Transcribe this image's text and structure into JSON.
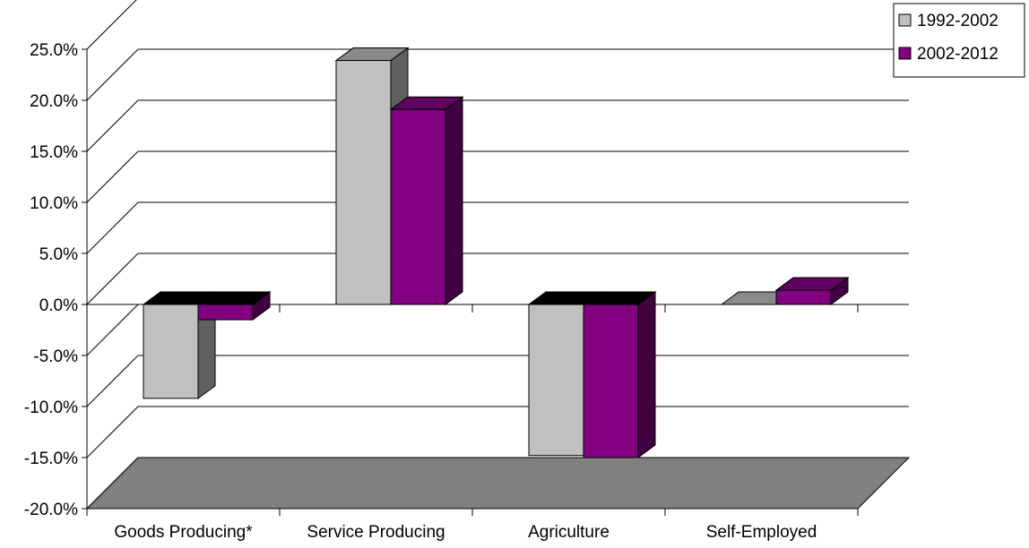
{
  "chart_data": {
    "type": "bar",
    "title": "",
    "xlabel": "",
    "ylabel": "",
    "categories": [
      "Goods Producing*",
      "Service Producing",
      "Agriculture",
      "Self-Employed"
    ],
    "series": [
      {
        "name": "1992-2002",
        "values": [
          -9.2,
          23.9,
          -14.8,
          0.0
        ]
      },
      {
        "name": "2002-2012",
        "values": [
          -1.5,
          19.1,
          -15.0,
          1.4
        ]
      }
    ],
    "ylim": [
      -20,
      25
    ],
    "yticks": [
      "25.0%",
      "20.0%",
      "15.0%",
      "10.0%",
      "5.0%",
      "0.0%",
      "-5.0%",
      "-10.0%",
      "-15.0%",
      "-20.0%"
    ],
    "grid": true,
    "legend_position": "top-right",
    "colors": {
      "series1_front": "#c0c0c0",
      "series1_side": "#606060",
      "series1_top": "#8a8a8a",
      "series2_front": "#800080",
      "series2_side": "#400040",
      "series2_top": "#600060",
      "floor": "#808080",
      "zero_top": "#000000"
    }
  }
}
